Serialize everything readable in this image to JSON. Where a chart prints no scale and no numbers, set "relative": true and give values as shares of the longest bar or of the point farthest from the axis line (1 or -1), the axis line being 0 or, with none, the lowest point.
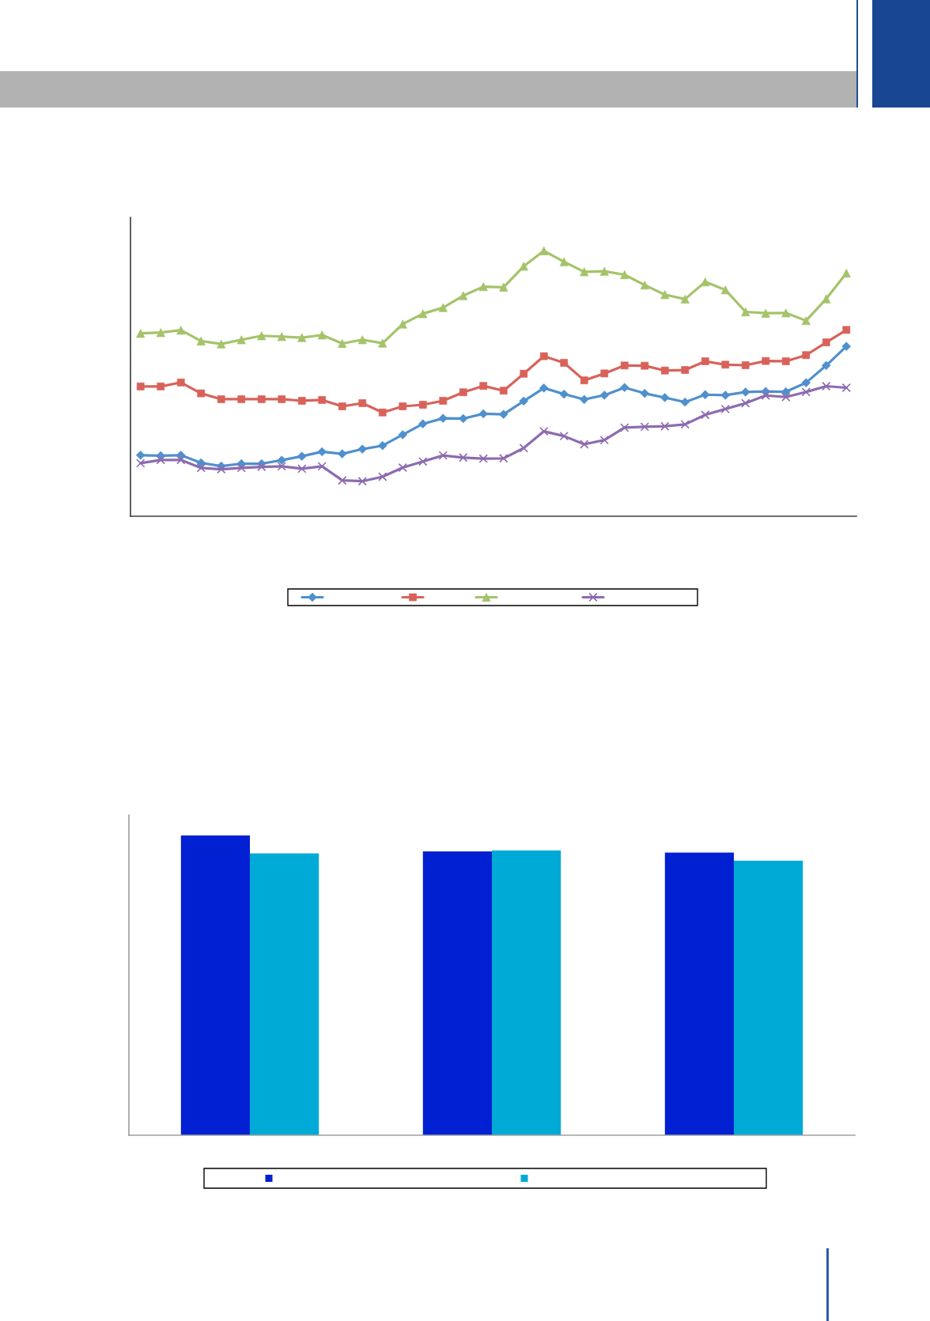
{
  "chart_data": [
    {
      "type": "line",
      "relative": true,
      "line_style": "solid",
      "categories": [
        null,
        null,
        null,
        null,
        null,
        null,
        null,
        null,
        null,
        null,
        null,
        null,
        null,
        null,
        null,
        null,
        null,
        null,
        null,
        null,
        null,
        null,
        null,
        null,
        null,
        null,
        null,
        null,
        null,
        null,
        null,
        null,
        null,
        null,
        null,
        null
      ],
      "series": [
        {
          "color": "#4f90cd",
          "marker": "diamond",
          "values": [
            0.23,
            0.228,
            0.23,
            0.201,
            0.189,
            0.198,
            0.198,
            0.211,
            0.226,
            0.243,
            0.235,
            0.253,
            0.266,
            0.307,
            0.348,
            0.369,
            0.368,
            0.386,
            0.384,
            0.434,
            0.483,
            0.46,
            0.44,
            0.456,
            0.485,
            0.463,
            0.447,
            0.43,
            0.458,
            0.456,
            0.468,
            0.47,
            0.469,
            0.503,
            0.568,
            0.64
          ]
        },
        {
          "color": "#d8625a",
          "marker": "square",
          "values": [
            0.489,
            0.489,
            0.504,
            0.463,
            0.441,
            0.441,
            0.441,
            0.441,
            0.435,
            0.438,
            0.414,
            0.426,
            0.391,
            0.414,
            0.42,
            0.435,
            0.467,
            0.491,
            0.473,
            0.537,
            0.603,
            0.578,
            0.512,
            0.538,
            0.568,
            0.567,
            0.549,
            0.551,
            0.584,
            0.571,
            0.569,
            0.585,
            0.584,
            0.607,
            0.655,
            0.702
          ]
        },
        {
          "color": "#a5c36a",
          "marker": "triangle",
          "values": [
            0.689,
            0.692,
            0.701,
            0.66,
            0.649,
            0.665,
            0.68,
            0.677,
            0.673,
            0.683,
            0.651,
            0.665,
            0.652,
            0.724,
            0.763,
            0.786,
            0.831,
            0.865,
            0.863,
            0.942,
            1,
            0.959,
            0.921,
            0.923,
            0.91,
            0.871,
            0.835,
            0.818,
            0.883,
            0.853,
            0.77,
            0.765,
            0.766,
            0.737,
            0.819,
            0.916
          ]
        },
        {
          "color": "#8d6bb0",
          "marker": "cross",
          "values": [
            0.2,
            0.212,
            0.212,
            0.182,
            0.177,
            0.182,
            0.186,
            0.188,
            0.179,
            0.188,
            0.135,
            0.132,
            0.149,
            0.183,
            0.206,
            0.229,
            0.221,
            0.217,
            0.218,
            0.257,
            0.32,
            0.302,
            0.271,
            0.287,
            0.334,
            0.337,
            0.339,
            0.346,
            0.382,
            0.404,
            0.426,
            0.455,
            0.449,
            0.468,
            0.49,
            0.484
          ]
        }
      ]
    },
    {
      "type": "bar",
      "relative": true,
      "categories": [
        null,
        null,
        null
      ],
      "series": [
        {
          "color": "#0020d2",
          "values": [
            1,
            0.947,
            0.943
          ]
        },
        {
          "color": "#00aad6",
          "values": [
            0.94,
            0.95,
            0.916
          ]
        }
      ]
    }
  ]
}
